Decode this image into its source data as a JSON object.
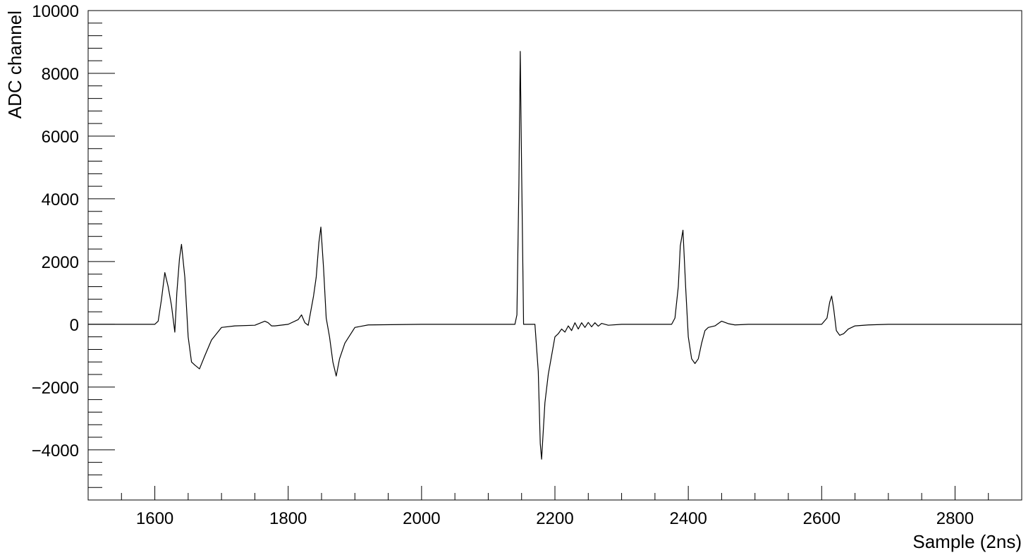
{
  "chart_data": {
    "type": "line",
    "title": "",
    "xlabel": "Sample (2ns)",
    "ylabel": "ADC channel",
    "xlim": [
      1500,
      2900
    ],
    "ylim": [
      -5600,
      10000
    ],
    "x_ticks": [
      1600,
      1800,
      2000,
      2200,
      2400,
      2600,
      2800
    ],
    "x_tick_labels": [
      "1600",
      "1800",
      "2000",
      "2200",
      "2400",
      "2600",
      "2800"
    ],
    "y_ticks": [
      -4000,
      -2000,
      0,
      2000,
      4000,
      6000,
      8000,
      10000
    ],
    "y_tick_labels": [
      "−4000",
      "−2000",
      "0",
      "2000",
      "4000",
      "6000",
      "8000",
      "10000"
    ],
    "grid": false,
    "legend": false,
    "line_color": "#000000",
    "series": [
      {
        "x": [
          1500,
          1600,
          1605,
          1610,
          1615,
          1620,
          1625,
          1630,
          1633,
          1637,
          1640,
          1645,
          1650,
          1655,
          1660,
          1667,
          1675,
          1685,
          1700,
          1720,
          1750,
          1765,
          1770,
          1775,
          1780,
          1800,
          1815,
          1820,
          1825,
          1830,
          1838,
          1842,
          1846,
          1849,
          1853,
          1857,
          1862,
          1867,
          1872,
          1877,
          1885,
          1900,
          1920,
          2000,
          2100,
          2140,
          2143,
          2146,
          2148,
          2150,
          2153,
          2160,
          2170,
          2175,
          2178,
          2180,
          2185,
          2190,
          2195,
          2200,
          2205,
          2210,
          2215,
          2220,
          2225,
          2230,
          2235,
          2240,
          2245,
          2250,
          2255,
          2260,
          2265,
          2270,
          2280,
          2300,
          2320,
          2350,
          2375,
          2380,
          2385,
          2388,
          2392,
          2396,
          2400,
          2405,
          2410,
          2415,
          2420,
          2425,
          2430,
          2440,
          2450,
          2460,
          2470,
          2490,
          2520,
          2560,
          2600,
          2608,
          2612,
          2615,
          2618,
          2622,
          2627,
          2633,
          2640,
          2650,
          2670,
          2700,
          2800,
          2900
        ],
        "y": [
          0,
          0,
          100,
          800,
          1650,
          1200,
          600,
          -250,
          1000,
          2100,
          2550,
          1500,
          -400,
          -1200,
          -1300,
          -1420,
          -1000,
          -500,
          -100,
          -50,
          -30,
          100,
          50,
          -50,
          -50,
          0,
          150,
          300,
          50,
          -30,
          900,
          1500,
          2600,
          3100,
          1800,
          200,
          -400,
          -1200,
          -1650,
          -1100,
          -600,
          -100,
          -20,
          0,
          0,
          0,
          300,
          4500,
          8700,
          5000,
          0,
          0,
          0,
          -1500,
          -3800,
          -4300,
          -2500,
          -1600,
          -1000,
          -400,
          -300,
          -150,
          -250,
          -50,
          -200,
          50,
          -150,
          50,
          -100,
          60,
          -80,
          50,
          -60,
          30,
          -30,
          0,
          0,
          0,
          0,
          200,
          1200,
          2500,
          3000,
          1200,
          -400,
          -1100,
          -1250,
          -1100,
          -600,
          -200,
          -100,
          -50,
          100,
          20,
          -20,
          0,
          0,
          0,
          0,
          200,
          700,
          900,
          500,
          -200,
          -350,
          -300,
          -150,
          -50,
          -20,
          0,
          0,
          0
        ]
      }
    ]
  }
}
